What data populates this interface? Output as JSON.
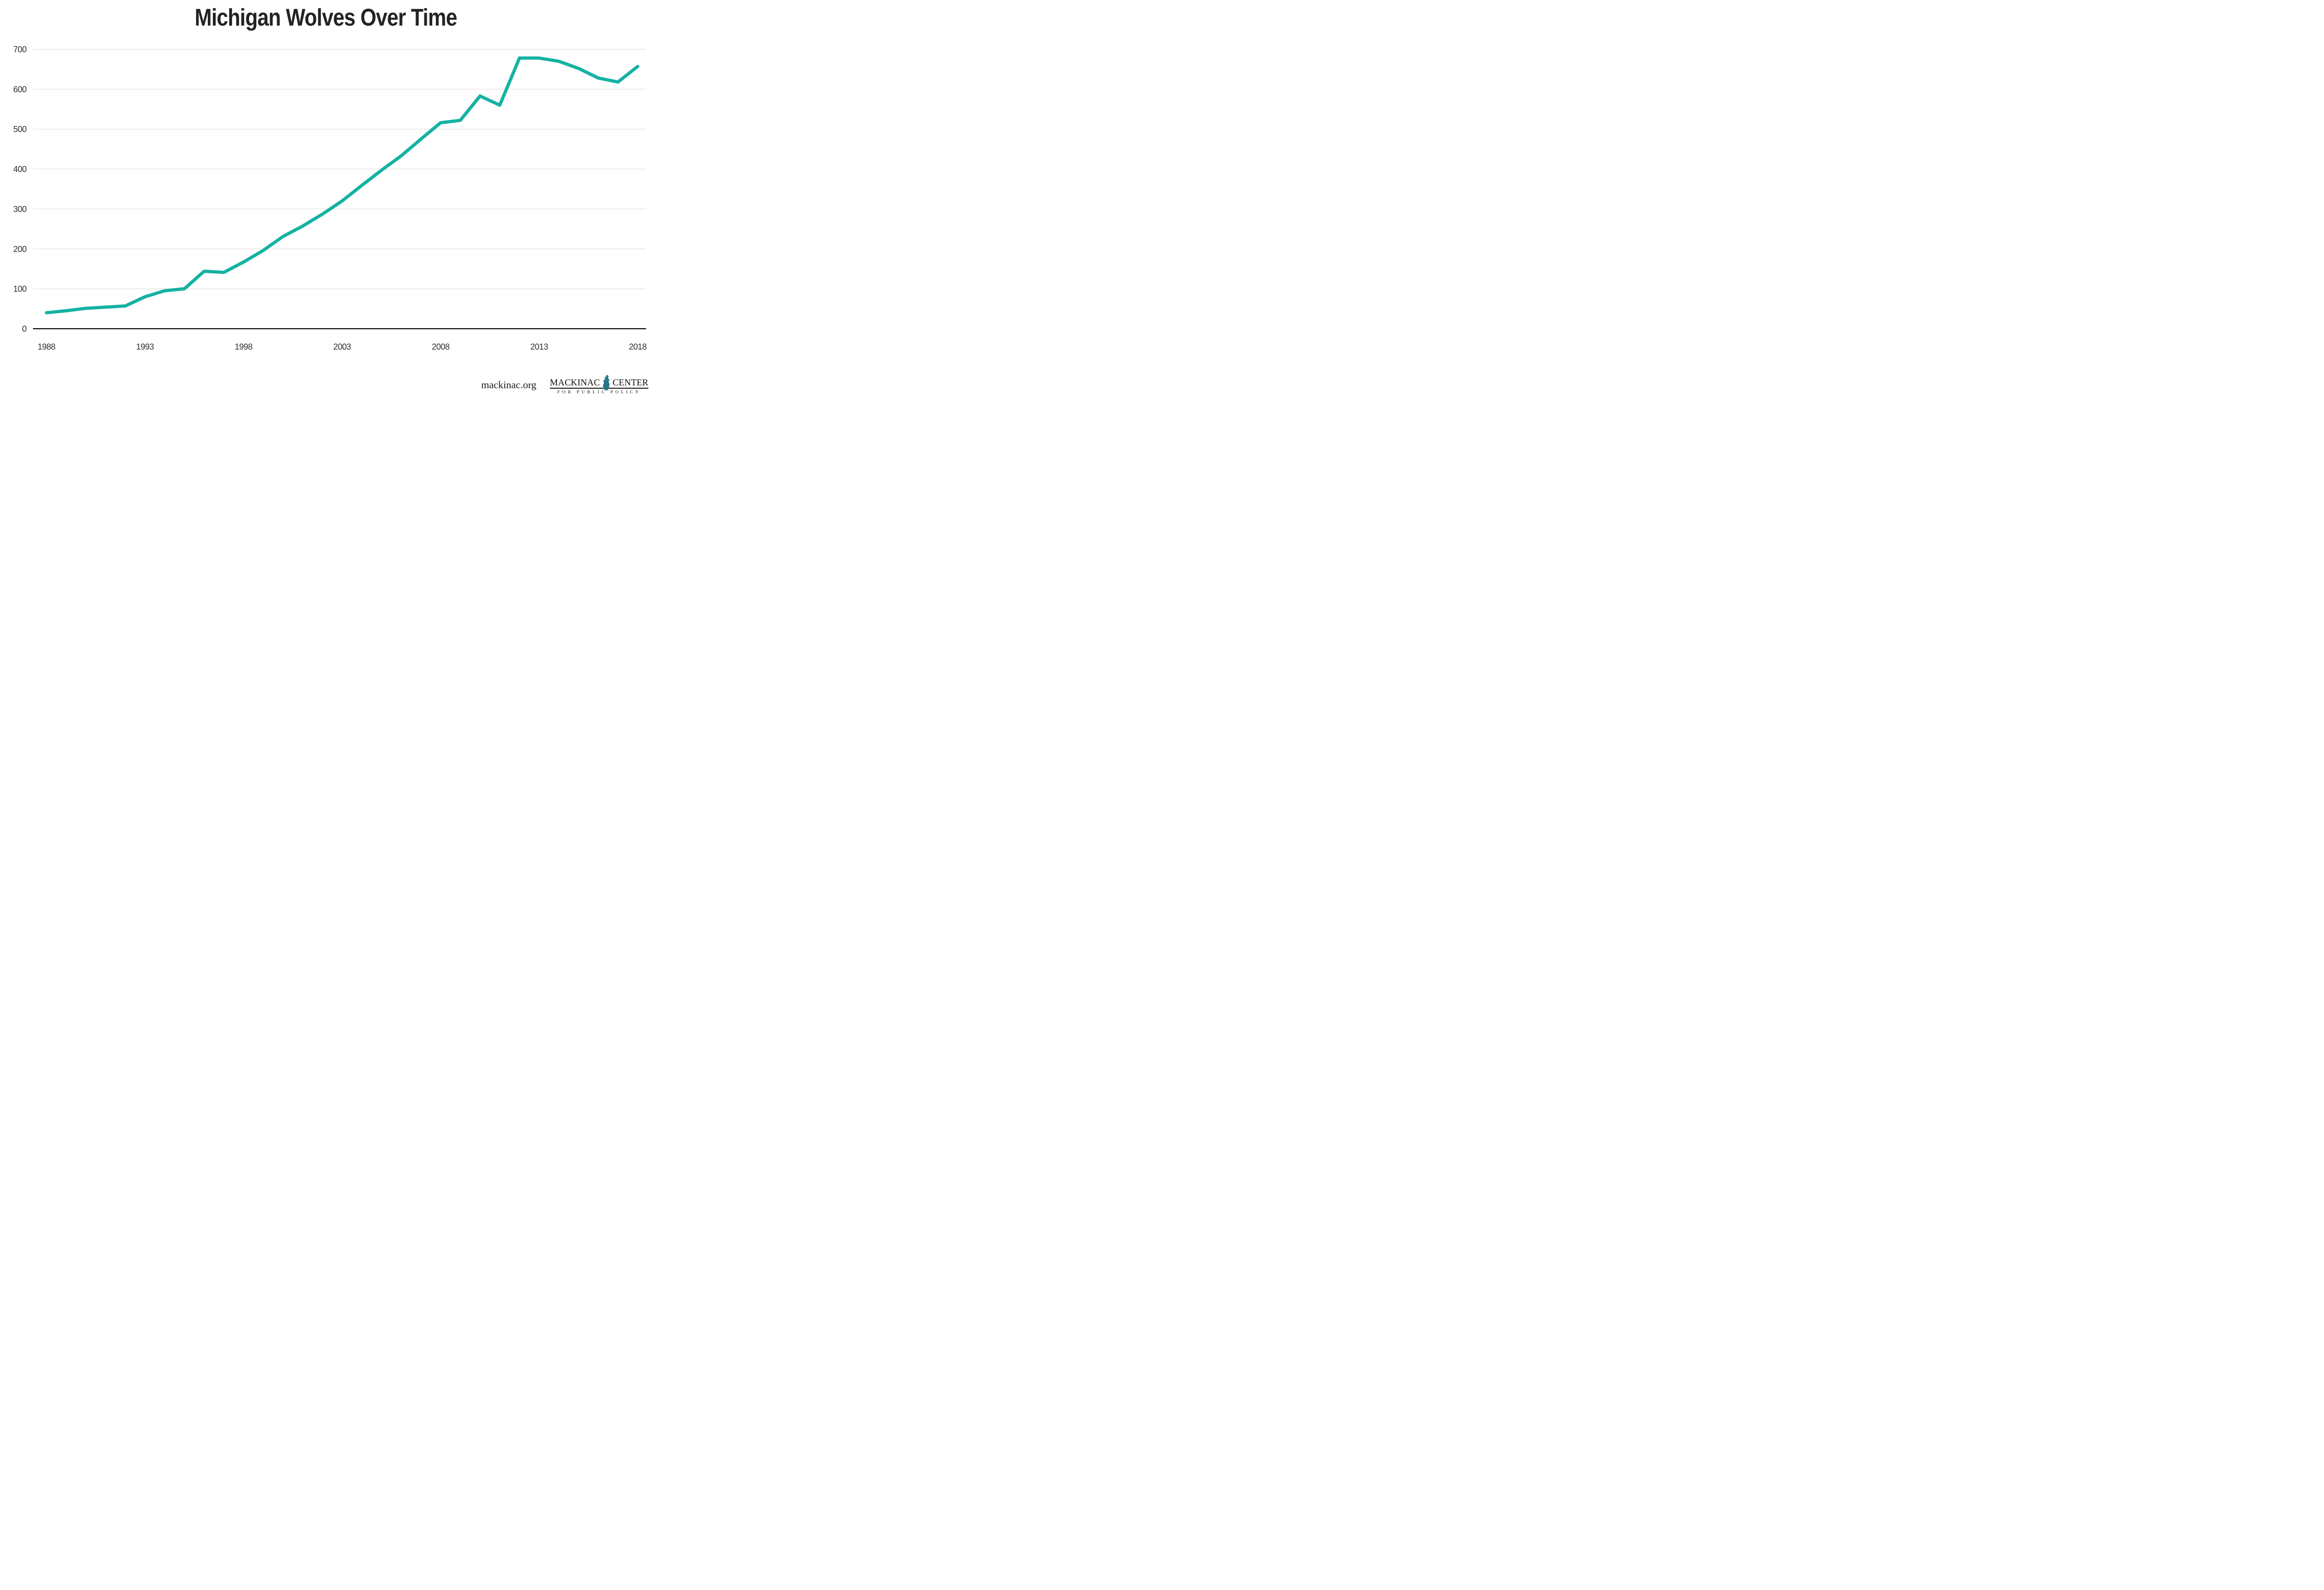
{
  "page": {
    "background": "#ffffff"
  },
  "chart": {
    "title": "Michigan Wolves Over Time"
  },
  "chart_data": {
    "type": "line",
    "title": "Michigan Wolves Over Time",
    "xlabel": "",
    "ylabel": "",
    "x": [
      1988,
      1989,
      1990,
      1991,
      1992,
      1993,
      1994,
      1995,
      1996,
      1997,
      1998,
      1999,
      2000,
      2001,
      2002,
      2003,
      2004,
      2005,
      2006,
      2007,
      2008,
      2009,
      2010,
      2011,
      2012,
      2013,
      2014,
      2015,
      2016,
      2017,
      2018
    ],
    "values": [
      40,
      45,
      51,
      54,
      57,
      80,
      95,
      100,
      144,
      141,
      167,
      196,
      231,
      257,
      287,
      320,
      359,
      397,
      433,
      475,
      516,
      522,
      583,
      560,
      678,
      678,
      670,
      652,
      628,
      618,
      657
    ],
    "ylim": [
      0,
      700
    ],
    "yticks": [
      0,
      100,
      200,
      300,
      400,
      500,
      600,
      700
    ],
    "xticks": [
      1988,
      1993,
      1998,
      2003,
      2008,
      2013,
      2018
    ],
    "grid": true,
    "legend_position": "none",
    "line_color": "#14b2a3",
    "line_width": 7,
    "gridline_color": "#e3e3e3",
    "axis_color": "#000000",
    "tick_label_color": "#2f2f2f"
  },
  "footer": {
    "site": "mackinac.org",
    "logo": {
      "word1": "MACKINAC",
      "word2": "CENTER",
      "tagline": "FOR PUBLIC POLICY",
      "michigan_color": "#2b7589"
    }
  }
}
